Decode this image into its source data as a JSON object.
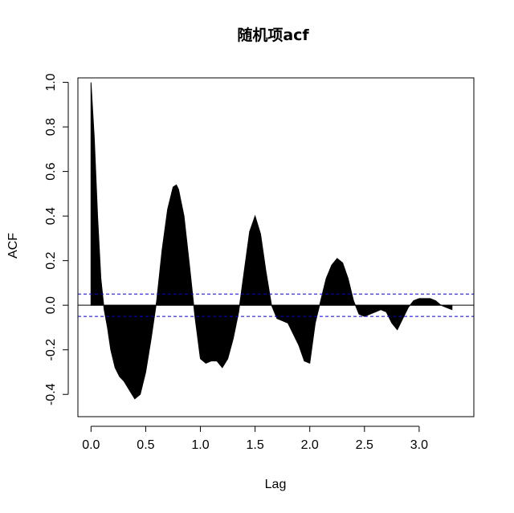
{
  "chart_data": {
    "type": "area",
    "title": "随机项acf",
    "xlabel": "Lag",
    "ylabel": "ACF",
    "xlim": [
      -0.12,
      3.5
    ],
    "ylim": [
      -0.5,
      1.02
    ],
    "x_ticks": [
      "0.0",
      "0.5",
      "1.0",
      "1.5",
      "2.0",
      "2.5",
      "3.0"
    ],
    "x_tick_values": [
      0,
      0.5,
      1.0,
      1.5,
      2.0,
      2.5,
      3.0
    ],
    "y_ticks": [
      "-0.4",
      "-0.2",
      "0.0",
      "0.2",
      "0.4",
      "0.6",
      "0.8",
      "1.0"
    ],
    "y_tick_values": [
      -0.4,
      -0.2,
      0,
      0.2,
      0.4,
      0.6,
      0.8,
      1.0
    ],
    "confidence_bound": 0.05,
    "confidence_color": "#0000cd",
    "fill_color": "#000000",
    "grid": false,
    "series": [
      {
        "x": [
          0.0,
          0.03,
          0.06,
          0.09,
          0.12,
          0.15,
          0.18,
          0.22,
          0.26,
          0.3,
          0.35,
          0.4,
          0.45,
          0.5,
          0.55,
          0.6,
          0.65,
          0.7,
          0.75,
          0.78,
          0.8,
          0.85,
          0.9,
          0.95,
          1.0,
          1.05,
          1.1,
          1.15,
          1.2,
          1.25,
          1.3,
          1.35,
          1.4,
          1.45,
          1.5,
          1.55,
          1.6,
          1.65,
          1.7,
          1.75,
          1.8,
          1.85,
          1.9,
          1.95,
          2.0,
          2.05,
          2.1,
          2.15,
          2.2,
          2.25,
          2.3,
          2.35,
          2.4,
          2.45,
          2.5,
          2.55,
          2.6,
          2.65,
          2.7,
          2.75,
          2.8,
          2.85,
          2.9,
          2.95,
          3.0,
          3.05,
          3.1,
          3.15,
          3.2,
          3.25,
          3.3
        ],
        "values": [
          1.0,
          0.75,
          0.4,
          0.12,
          -0.02,
          -0.1,
          -0.2,
          -0.28,
          -0.32,
          -0.34,
          -0.38,
          -0.42,
          -0.4,
          -0.3,
          -0.15,
          0.02,
          0.25,
          0.43,
          0.53,
          0.54,
          0.52,
          0.4,
          0.18,
          -0.05,
          -0.24,
          -0.26,
          -0.25,
          -0.25,
          -0.28,
          -0.24,
          -0.15,
          -0.03,
          0.15,
          0.33,
          0.4,
          0.32,
          0.15,
          0.0,
          -0.06,
          -0.07,
          -0.08,
          -0.13,
          -0.18,
          -0.25,
          -0.26,
          -0.08,
          0.02,
          0.12,
          0.18,
          0.21,
          0.19,
          0.12,
          0.02,
          -0.04,
          -0.05,
          -0.04,
          -0.03,
          -0.02,
          -0.03,
          -0.08,
          -0.11,
          -0.06,
          -0.01,
          0.02,
          0.03,
          0.03,
          0.03,
          0.02,
          0.0,
          -0.01,
          -0.02
        ]
      }
    ]
  }
}
